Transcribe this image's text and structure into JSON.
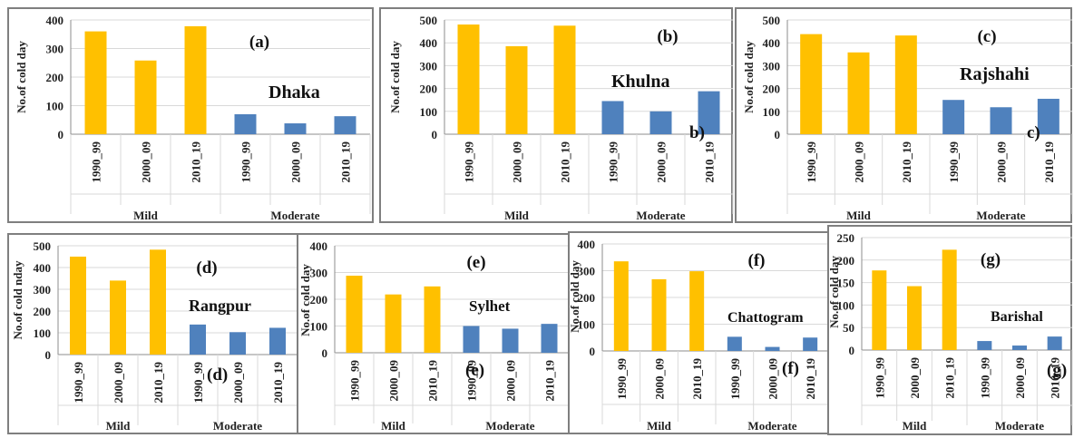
{
  "colors": {
    "mild": "#FFC000",
    "moderate": "#4F81BD",
    "grid": "#d9d9d9",
    "axis": "#8c8c8c"
  },
  "chart_data": [
    {
      "type": "bar",
      "panel": "(a)",
      "city": "Dhaka",
      "ylabel": "No.of cold day",
      "ylim": [
        0,
        400
      ],
      "yticks": [
        0,
        100,
        200,
        300,
        400
      ],
      "categories": [
        "1990_99",
        "2000_09",
        "2010_19"
      ],
      "groups": [
        "Mild",
        "Moderate"
      ],
      "series": [
        {
          "name": "Mild",
          "values": [
            360,
            258,
            378
          ]
        },
        {
          "name": "Moderate",
          "values": [
            70,
            38,
            63
          ]
        }
      ],
      "annotations": []
    },
    {
      "type": "bar",
      "panel": "(b)",
      "city": "Khulna",
      "ylabel": "No.of cold day",
      "ylim": [
        0,
        500
      ],
      "yticks": [
        0,
        100,
        200,
        300,
        400,
        500
      ],
      "categories": [
        "1990_99",
        "2000_09",
        "2010_19"
      ],
      "groups": [
        "Mild",
        "Moderate"
      ],
      "series": [
        {
          "name": "Mild",
          "values": [
            480,
            385,
            475
          ]
        },
        {
          "name": "Moderate",
          "values": [
            145,
            100,
            188
          ]
        }
      ],
      "annotations": [
        "b)"
      ]
    },
    {
      "type": "bar",
      "panel": "(c)",
      "city": "Rajshahi",
      "ylabel": "No.of cold day",
      "ylim": [
        0,
        500
      ],
      "yticks": [
        0,
        100,
        200,
        300,
        400,
        500
      ],
      "categories": [
        "1990_99",
        "2000_09",
        "2010_19"
      ],
      "groups": [
        "Mild",
        "Moderate"
      ],
      "series": [
        {
          "name": "Mild",
          "values": [
            438,
            358,
            432
          ]
        },
        {
          "name": "Moderate",
          "values": [
            150,
            118,
            155
          ]
        }
      ],
      "annotations": [
        "c)"
      ]
    },
    {
      "type": "bar",
      "panel": "(d)",
      "city": "Rangpur",
      "ylabel": "No.of cold nday",
      "ylim": [
        0,
        500
      ],
      "yticks": [
        0,
        100,
        200,
        300,
        400,
        500
      ],
      "categories": [
        "1990_99",
        "2000_09",
        "2010_19"
      ],
      "groups": [
        "Mild",
        "Moderate"
      ],
      "series": [
        {
          "name": "Mild",
          "values": [
            450,
            340,
            482
          ]
        },
        {
          "name": "Moderate",
          "values": [
            138,
            103,
            123
          ]
        }
      ],
      "annotations": [
        "(d)"
      ]
    },
    {
      "type": "bar",
      "panel": "(e)",
      "city": "Sylhet",
      "ylabel": "No.of cold day",
      "ylim": [
        0,
        400
      ],
      "yticks": [
        0,
        100,
        200,
        300,
        400
      ],
      "categories": [
        "1990_99",
        "2000_09",
        "2010_19"
      ],
      "groups": [
        "Mild",
        "Moderate"
      ],
      "series": [
        {
          "name": "Mild",
          "values": [
            288,
            218,
            248
          ]
        },
        {
          "name": "Moderate",
          "values": [
            100,
            90,
            108
          ]
        }
      ],
      "annotations": [
        "(e)"
      ]
    },
    {
      "type": "bar",
      "panel": "(f)",
      "city": "Chattogram",
      "ylabel": "No.of cold day",
      "ylim": [
        0,
        400
      ],
      "yticks": [
        0,
        100,
        200,
        300,
        400
      ],
      "categories": [
        "1990_99",
        "2000_09",
        "2010_19"
      ],
      "groups": [
        "Mild",
        "Moderate"
      ],
      "series": [
        {
          "name": "Mild",
          "values": [
            335,
            268,
            298
          ]
        },
        {
          "name": "Moderate",
          "values": [
            53,
            15,
            50
          ]
        }
      ],
      "annotations": [
        "(f)"
      ]
    },
    {
      "type": "bar",
      "panel": "(g)",
      "city": "Barishal",
      "ylabel": "No.of cold day",
      "ylim": [
        0,
        250
      ],
      "yticks": [
        0,
        50,
        100,
        150,
        200,
        250
      ],
      "categories": [
        "1990_99",
        "2000_09",
        "2010_19"
      ],
      "groups": [
        "Mild",
        "Moderate"
      ],
      "series": [
        {
          "name": "Mild",
          "values": [
            177,
            142,
            223
          ]
        },
        {
          "name": "Moderate",
          "values": [
            20,
            10,
            30
          ]
        }
      ],
      "annotations": [
        "(g)"
      ]
    }
  ]
}
